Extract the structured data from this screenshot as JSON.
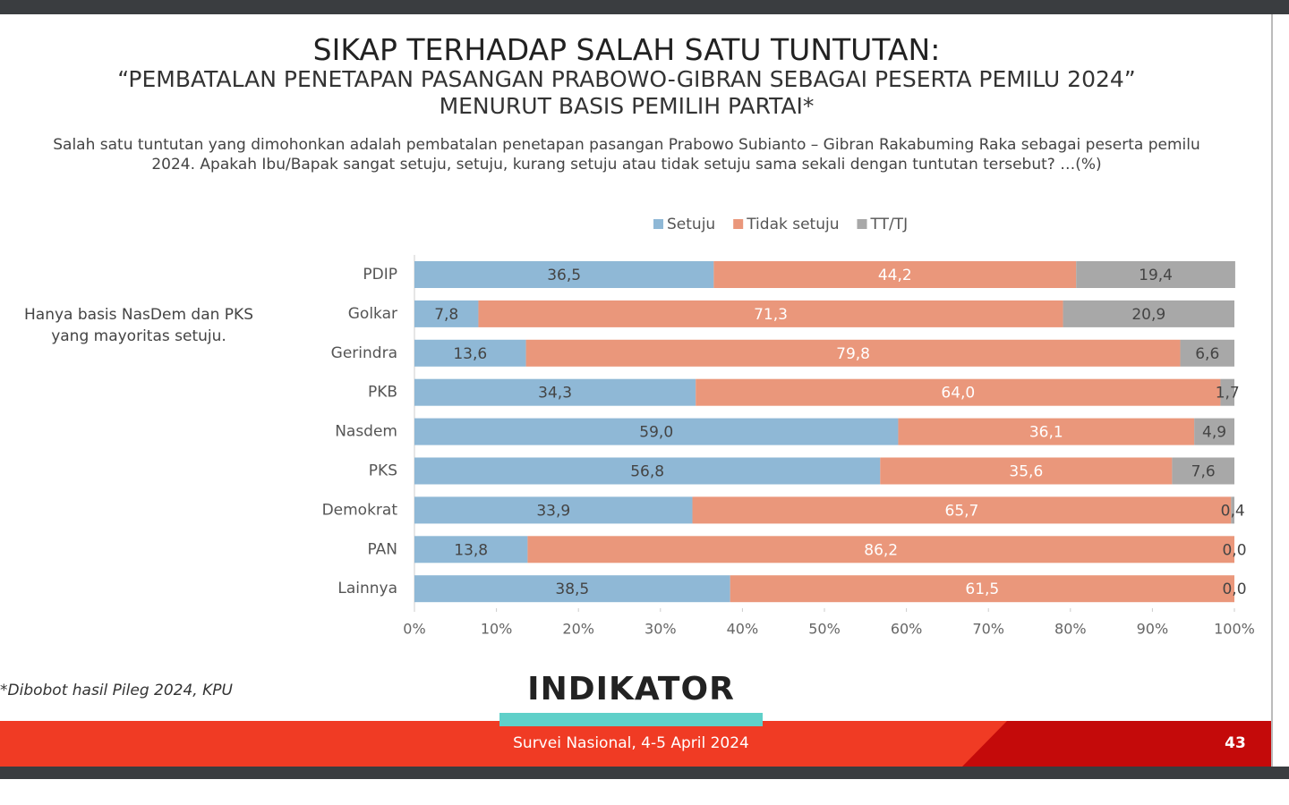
{
  "chart_data": {
    "type": "bar",
    "orientation": "horizontal",
    "stacked": true,
    "title": "SIKAP TERHADAP SALAH SATU TUNTUTAN:",
    "subtitle": [
      "“PEMBATALAN PENETAPAN PASANGAN PRABOWO-GIBRAN SEBAGAI PESERTA PEMILU 2024”",
      "MENURUT BASIS PEMILIH PARTAI*"
    ],
    "question": "Salah satu tuntutan yang dimohonkan adalah pembatalan penetapan pasangan Prabowo Subianto – Gibran Rakabuming Raka sebagai peserta pemilu 2024. Apakah Ibu/Bapak sangat setuju, setuju, kurang setuju atau tidak setuju sama sekali dengan tuntutan tersebut? …(%)",
    "annotation": "Hanya basis NasDem dan PKS yang mayoritas setuju.",
    "legend": "top",
    "categories": [
      "PDIP",
      "Golkar",
      "Gerindra",
      "PKB",
      "Nasdem",
      "PKS",
      "Demokrat",
      "PAN",
      "Lainnya"
    ],
    "series": [
      {
        "name": "Setuju",
        "color": "#8fb8d6",
        "values": [
          36.5,
          7.8,
          13.6,
          34.3,
          59.0,
          56.8,
          33.9,
          13.8,
          38.5
        ],
        "value_labels": [
          "36,5",
          "7,8",
          "13,6",
          "34,3",
          "59,0",
          "56,8",
          "33,9",
          "13,8",
          "38,5"
        ]
      },
      {
        "name": "Tidak setuju",
        "color": "#ea977b",
        "values": [
          44.2,
          71.3,
          79.8,
          64.0,
          36.1,
          35.6,
          65.7,
          86.2,
          61.5
        ],
        "value_labels": [
          "44,2",
          "71,3",
          "79,8",
          "64,0",
          "36,1",
          "35,6",
          "65,7",
          "86,2",
          "61,5"
        ]
      },
      {
        "name": "TT/TJ",
        "color": "#a8a8a8",
        "values": [
          19.4,
          20.9,
          6.6,
          1.7,
          4.9,
          7.6,
          0.4,
          0.0,
          0.0
        ],
        "value_labels": [
          "19,4",
          "20,9",
          "6,6",
          "1,7",
          "4,9",
          "7,6",
          "0,4",
          "0,0",
          "0,0"
        ]
      }
    ],
    "xlim": [
      0,
      100
    ],
    "xticks": [
      {
        "value": 0,
        "label": "0%"
      },
      {
        "value": 10,
        "label": "10%"
      },
      {
        "value": 20,
        "label": "20%"
      },
      {
        "value": 30,
        "label": "30%"
      },
      {
        "value": 40,
        "label": "40%"
      },
      {
        "value": 50,
        "label": "50%"
      },
      {
        "value": 60,
        "label": "60%"
      },
      {
        "value": 70,
        "label": "70%"
      },
      {
        "value": 80,
        "label": "80%"
      },
      {
        "value": 90,
        "label": "90%"
      },
      {
        "value": 100,
        "label": "100%"
      }
    ]
  },
  "slide": {
    "footnote": "*Dibobot hasil Pileg 2024, KPU",
    "logo": "INDIKATOR",
    "footer": "Survei Nasional, 4-5 April 2024",
    "page": "43"
  }
}
